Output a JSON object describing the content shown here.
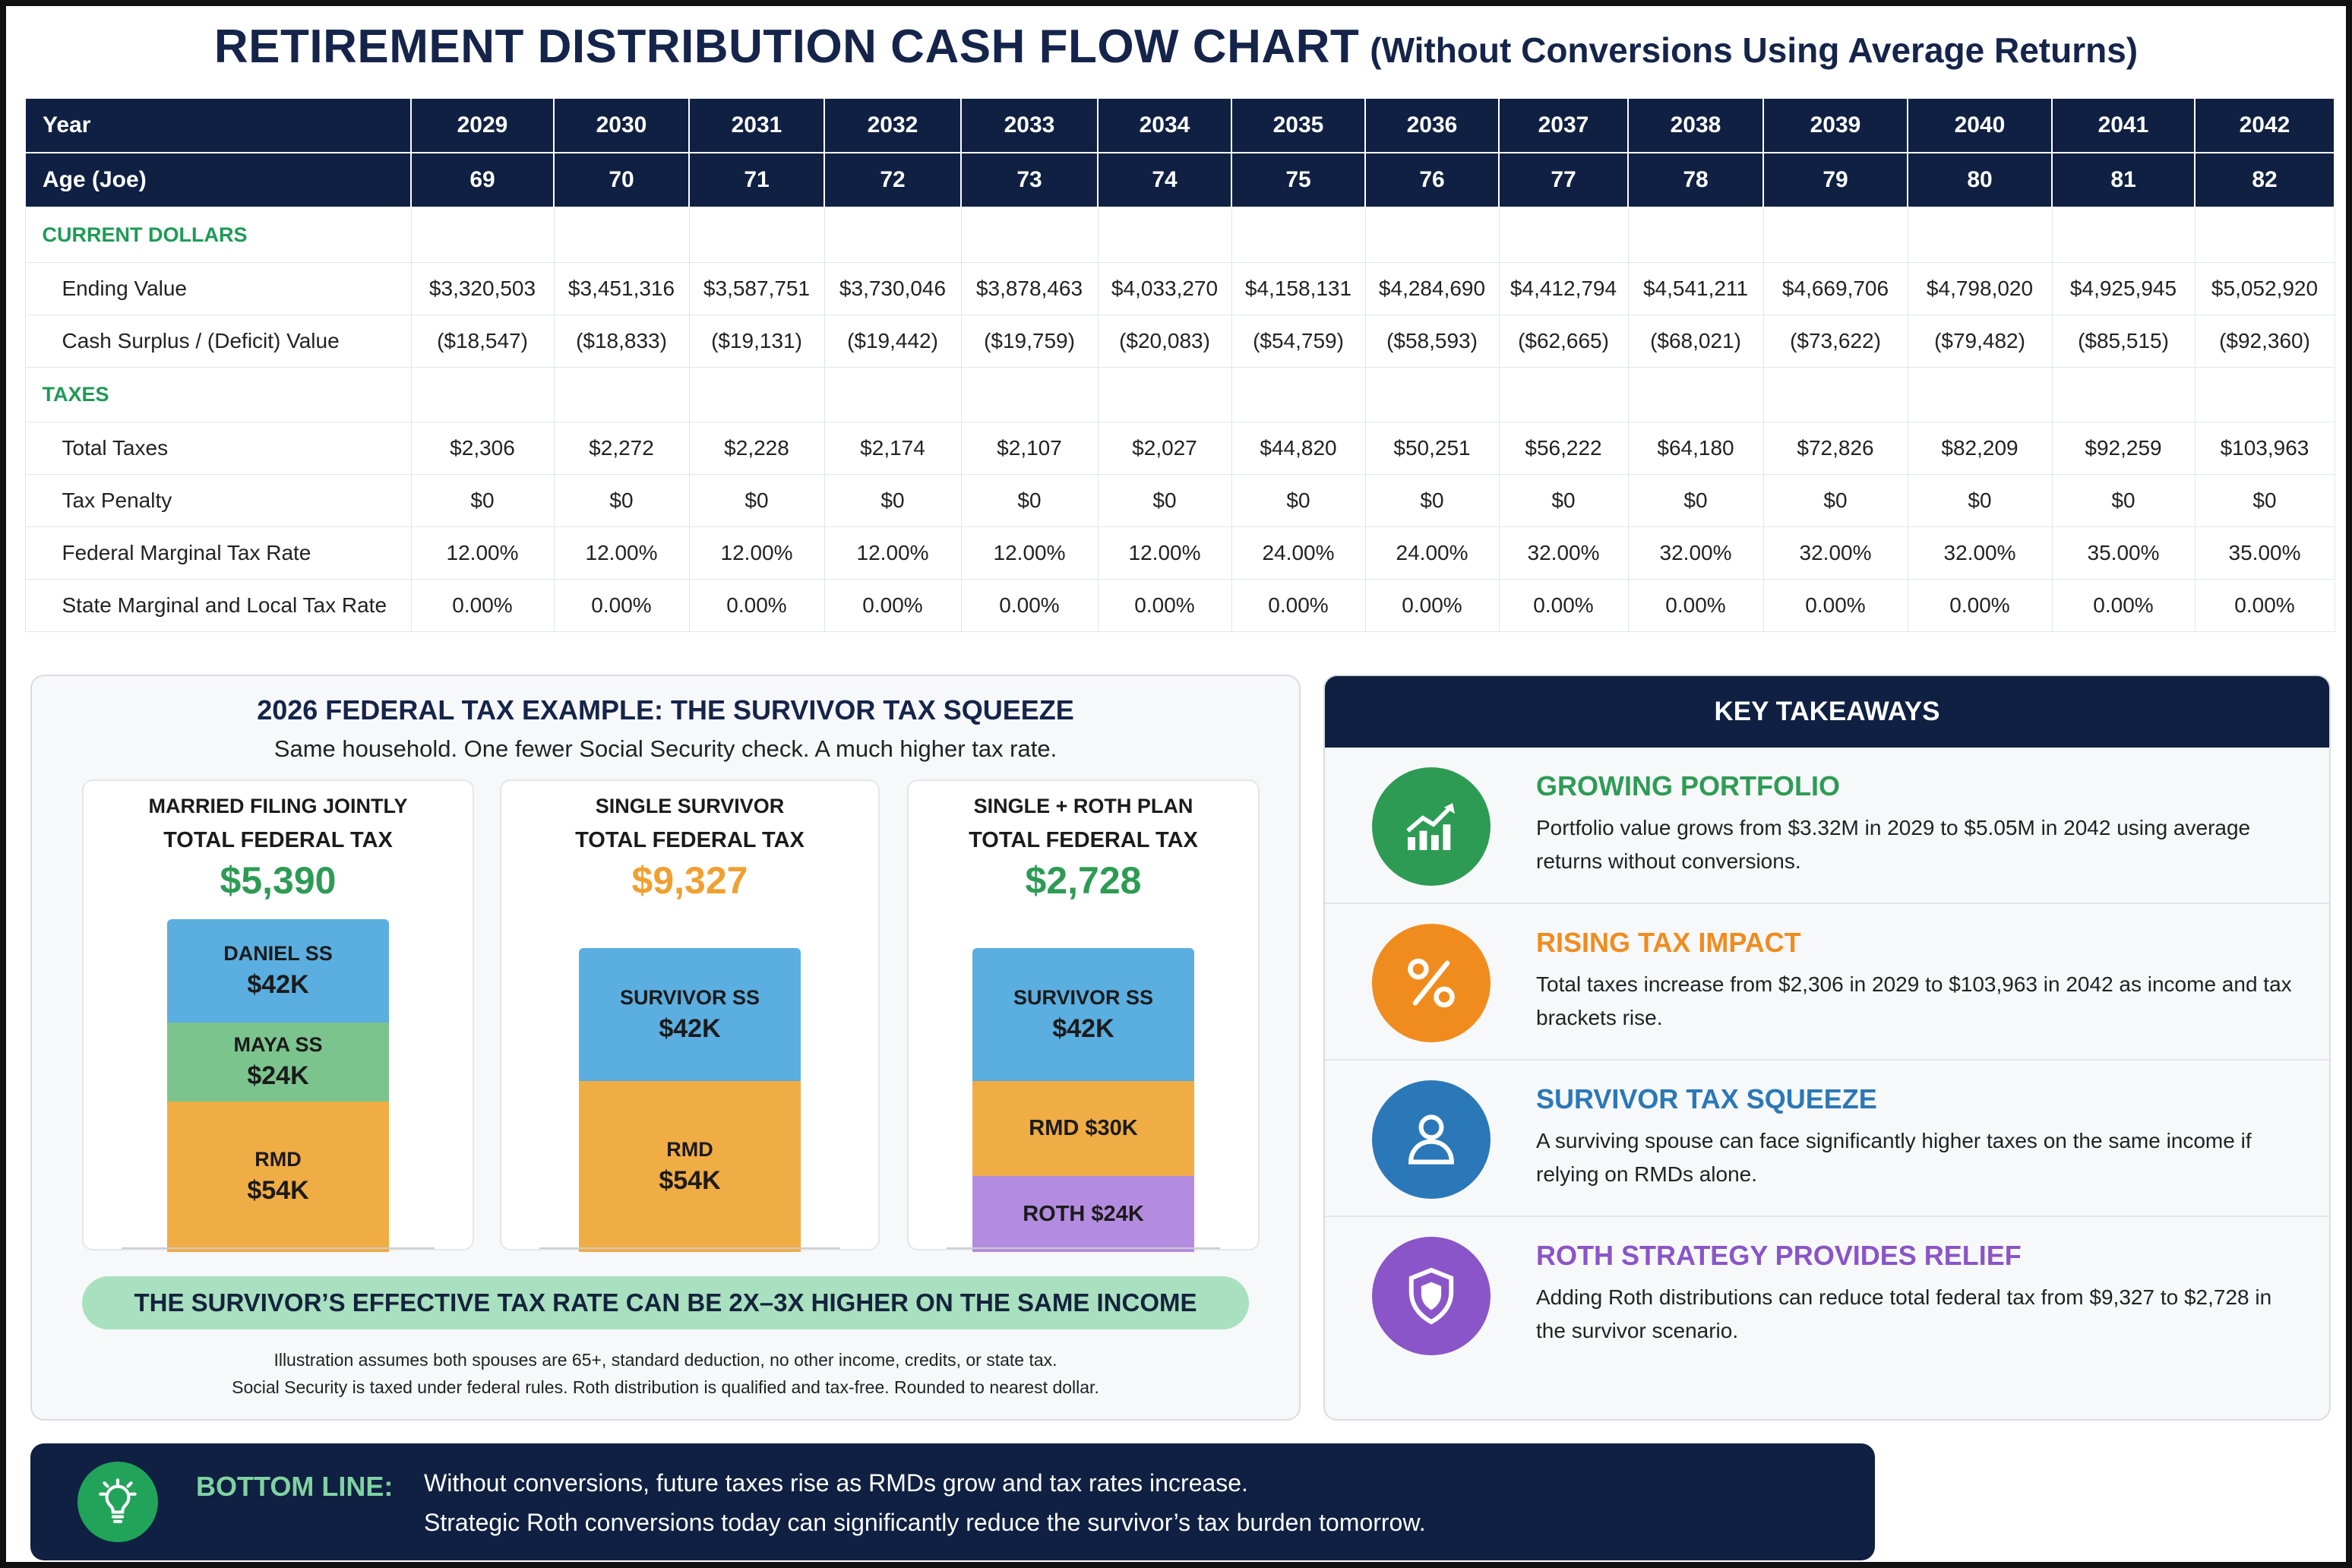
{
  "title": {
    "main": "RETIREMENT DISTRIBUTION CASH FLOW CHART",
    "sub": "(Without Conversions Using Average Returns)"
  },
  "table": {
    "year_label": "Year",
    "years": [
      "2029",
      "2030",
      "2031",
      "2032",
      "2033",
      "2034",
      "2035",
      "2036",
      "2037",
      "2038",
      "2039",
      "2040",
      "2041",
      "2042"
    ],
    "age_label": "Age (Joe)",
    "ages": [
      "69",
      "70",
      "71",
      "72",
      "73",
      "74",
      "75",
      "76",
      "77",
      "78",
      "79",
      "80",
      "81",
      "82"
    ],
    "sections": [
      {
        "title": "CURRENT DOLLARS",
        "rows": [
          {
            "label": "Ending Value",
            "values": [
              "$3,320,503",
              "$3,451,316",
              "$3,587,751",
              "$3,730,046",
              "$3,878,463",
              "$4,033,270",
              "$4,158,131",
              "$4,284,690",
              "$4,412,794",
              "$4,541,211",
              "$4,669,706",
              "$4,798,020",
              "$4,925,945",
              "$5,052,920"
            ]
          },
          {
            "label": "Cash Surplus / (Deficit) Value",
            "values": [
              "($18,547)",
              "($18,833)",
              "($19,131)",
              "($19,442)",
              "($19,759)",
              "($20,083)",
              "($54,759)",
              "($58,593)",
              "($62,665)",
              "($68,021)",
              "($73,622)",
              "($79,482)",
              "($85,515)",
              "($92,360)"
            ]
          }
        ]
      },
      {
        "title": "TAXES",
        "rows": [
          {
            "label": "Total Taxes",
            "values": [
              "$2,306",
              "$2,272",
              "$2,228",
              "$2,174",
              "$2,107",
              "$2,027",
              "$44,820",
              "$50,251",
              "$56,222",
              "$64,180",
              "$72,826",
              "$82,209",
              "$92,259",
              "$103,963"
            ]
          },
          {
            "label": "Tax Penalty",
            "values": [
              "$0",
              "$0",
              "$0",
              "$0",
              "$0",
              "$0",
              "$0",
              "$0",
              "$0",
              "$0",
              "$0",
              "$0",
              "$0",
              "$0"
            ]
          },
          {
            "label": "Federal Marginal Tax Rate",
            "values": [
              "12.00%",
              "12.00%",
              "12.00%",
              "12.00%",
              "12.00%",
              "12.00%",
              "24.00%",
              "24.00%",
              "32.00%",
              "32.00%",
              "32.00%",
              "32.00%",
              "35.00%",
              "35.00%"
            ]
          },
          {
            "label": "State Marginal and Local Tax Rate",
            "values": [
              "0.00%",
              "0.00%",
              "0.00%",
              "0.00%",
              "0.00%",
              "0.00%",
              "0.00%",
              "0.00%",
              "0.00%",
              "0.00%",
              "0.00%",
              "0.00%",
              "0.00%",
              "0.00%"
            ]
          }
        ]
      }
    ]
  },
  "survivor": {
    "title_prefix": "2026 FEDERAL TAX EXAMPLE:",
    "title_accent": "THE SURVIVOR TAX SQUEEZE",
    "subtitle": "Same household. One fewer Social Security check. A much higher tax rate.",
    "cards": [
      {
        "line1": "MARRIED FILING JOINTLY",
        "line2": "TOTAL FEDERAL TAX",
        "total": "$5,390",
        "total_color": "#2e9b55",
        "segments": [
          {
            "label": "DANIEL SS",
            "value": "$42K",
            "amount": 42,
            "color": "#5aaee0"
          },
          {
            "label": "MAYA SS",
            "value": "$24K",
            "amount": 24,
            "color": "#7cc48e"
          },
          {
            "label": "RMD",
            "value": "$54K",
            "amount": 54,
            "color": "#f0ac45"
          }
        ]
      },
      {
        "line1": "SINGLE SURVIVOR",
        "line2": "TOTAL FEDERAL TAX",
        "total": "$9,327",
        "total_color": "#f0a030",
        "segments": [
          {
            "label": "SURVIVOR SS",
            "value": "$42K",
            "amount": 42,
            "color": "#5aaee0"
          },
          {
            "label": "RMD",
            "value": "$54K",
            "amount": 54,
            "color": "#f0ac45"
          }
        ]
      },
      {
        "line1": "SINGLE + ROTH PLAN",
        "line2": "TOTAL FEDERAL TAX",
        "total": "$2,728",
        "total_color": "#2e9b55",
        "segments": [
          {
            "label": "SURVIVOR SS",
            "value": "$42K",
            "amount": 42,
            "color": "#5aaee0"
          },
          {
            "label": "RMD $30K",
            "value": "",
            "amount": 30,
            "color": "#f0ac45"
          },
          {
            "label": "ROTH $24K",
            "value": "",
            "amount": 24,
            "color": "#b38ce0"
          }
        ]
      }
    ],
    "banner": "THE SURVIVOR’S EFFECTIVE TAX RATE CAN BE 2X–3X HIGHER ON THE SAME INCOME",
    "footnote_1": "Illustration assumes both spouses are 65+, standard deduction, no other income, credits, or state tax.",
    "footnote_2": "Social Security is taxed under federal rules. Roth distribution is qualified and tax-free. Rounded to nearest dollar."
  },
  "takeaways": {
    "heading": "KEY TAKEAWAYS",
    "items": [
      {
        "icon": "growth-chart-icon",
        "color": "#2e9b55",
        "title": "GROWING PORTFOLIO",
        "text": "Portfolio value grows from $3.32M in 2029 to $5.05M in 2042 using average returns without conversions."
      },
      {
        "icon": "percent-icon",
        "color": "#f08c1e",
        "title": "RISING TAX IMPACT",
        "text": "Total taxes increase from $2,306 in 2029 to $103,963 in 2042 as income and tax brackets rise."
      },
      {
        "icon": "person-icon",
        "color": "#2a78b8",
        "title": "SURVIVOR TAX SQUEEZE",
        "text": "A surviving spouse can face significantly higher taxes on the same income if relying on RMDs alone."
      },
      {
        "icon": "shield-icon",
        "color": "#8a55c8",
        "title": "ROTH STRATEGY PROVIDES RELIEF",
        "text": "Adding Roth distributions can reduce total federal tax from $9,327 to $2,728 in the survivor scenario."
      }
    ]
  },
  "bottom": {
    "label": "BOTTOM LINE:",
    "line1": "Without conversions, future taxes rise as RMDs grow and tax rates increase.",
    "line2": "Strategic Roth conversions today can significantly reduce the survivor’s tax burden tomorrow."
  }
}
